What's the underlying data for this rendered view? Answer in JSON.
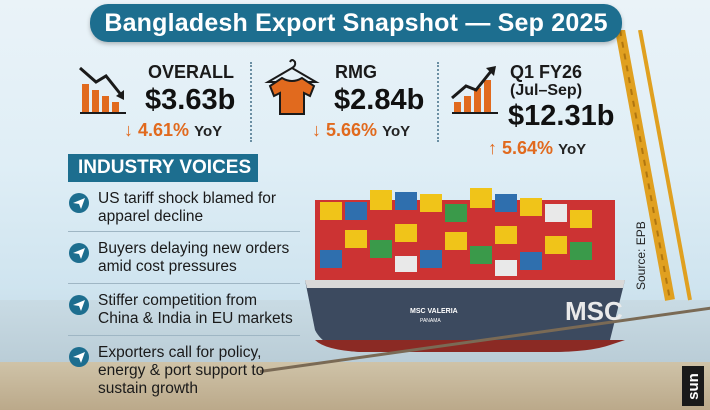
{
  "header": {
    "title": "Bangladesh Export Snapshot — Sep 2025"
  },
  "stats": [
    {
      "icon": "bar-decline-icon",
      "title": "OVERALL",
      "value": "$3.63b",
      "arrow": "↓",
      "change": "4.61%",
      "yoy": "YoY",
      "direction": "down"
    },
    {
      "icon": "shirt-icon",
      "title": "RMG",
      "value": "$2.84b",
      "arrow": "↓",
      "change": "5.66%",
      "yoy": "YoY",
      "direction": "down"
    },
    {
      "icon": "bar-growth-icon",
      "title": "Q1 FY26",
      "subtitle": "(Jul–Sep)",
      "value": "$12.31b",
      "arrow": "↑",
      "change": "5.64%",
      "yoy": "YoY",
      "direction": "up"
    }
  ],
  "voices": {
    "heading": "INDUSTRY VOICES",
    "items": [
      "US tariff shock blamed for apparel decline",
      "Buyers delaying new orders amid cost pressures",
      "Stiffer competition from China & India in EU markets",
      "Exporters call for policy, energy & port support to sustain growth"
    ]
  },
  "ship": {
    "name": "MSC VALERIA",
    "flag": "PANAMA",
    "hull_mark": "MSC"
  },
  "source": "Source: EPB",
  "brand": "sun",
  "colors": {
    "accent": "#1d6e8f",
    "change": "#e16a1e",
    "icon": "#e16a1e"
  }
}
